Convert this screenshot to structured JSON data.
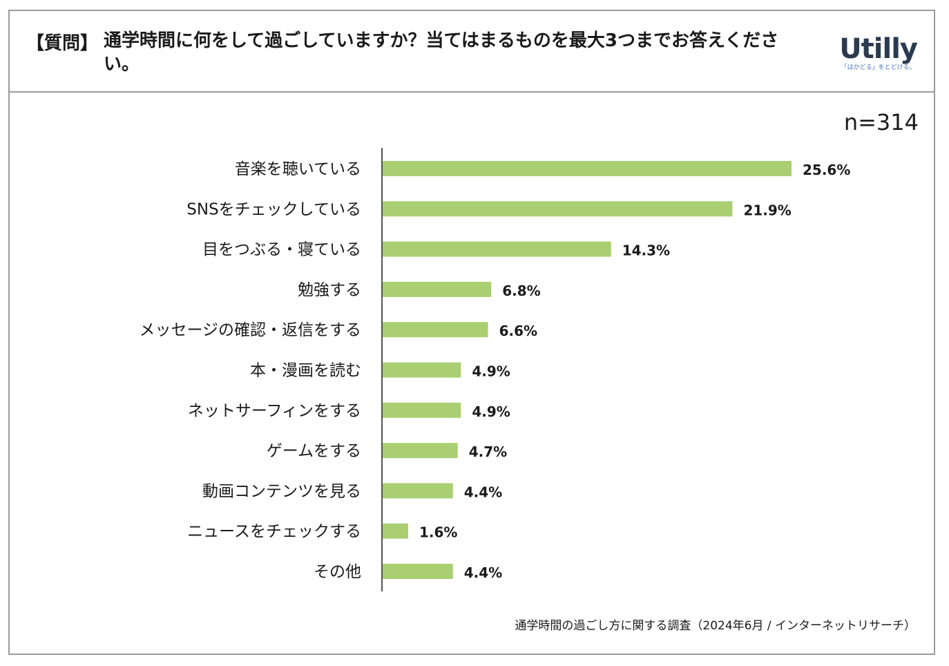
{
  "header": {
    "question_tag": "【質問】",
    "question_text": "通学時間に何をして過ごしていますか？当てはまるものを最大3つまでお答えください。",
    "logo_word": "Utilly",
    "logo_tagline": "「はかどる」をとどける。"
  },
  "sample_size": "n=314",
  "source": "通学時間の過ごし方に関する調査（2024年6月 / インターネットリサーチ）",
  "colors": {
    "bar": "#a9cf72",
    "axis": "#1a1a1a",
    "frame": "#9a9a9a"
  },
  "chart_data": {
    "type": "bar",
    "orientation": "horizontal",
    "categories": [
      "音楽を聴いている",
      "SNSをチェックしている",
      "目をつぶる・寝ている",
      "勉強する",
      "メッセージの確認・返信をする",
      "本・漫画を読む",
      "ネットサーフィンをする",
      "ゲームをする",
      "動画コンテンツを見る",
      "ニュースをチェックする",
      "その他"
    ],
    "values": [
      25.6,
      21.9,
      14.3,
      6.8,
      6.6,
      4.9,
      4.9,
      4.7,
      4.4,
      1.6,
      4.4
    ],
    "value_labels": [
      "25.6%",
      "21.9%",
      "14.3%",
      "6.8%",
      "6.6%",
      "4.9%",
      "4.9%",
      "4.7%",
      "4.4%",
      "1.6%",
      "4.4%"
    ],
    "unit": "%",
    "xlim": [
      0,
      25.6
    ],
    "grid": false,
    "title": "",
    "xlabel": "",
    "ylabel": ""
  }
}
